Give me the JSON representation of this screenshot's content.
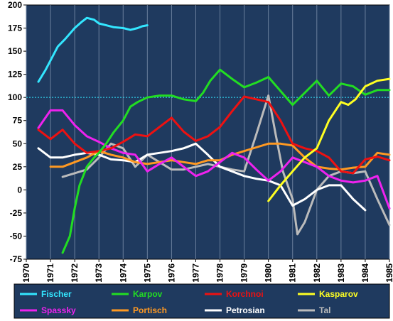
{
  "chart_data": {
    "type": "line",
    "xlim": [
      1970,
      1985
    ],
    "ylim": [
      -75,
      200
    ],
    "x_ticks": [
      "1970",
      "1971",
      "1972",
      "1973",
      "1974",
      "1975",
      "1976",
      "1977",
      "1978",
      "1979",
      "1980",
      "1981",
      "1982",
      "1983",
      "1984",
      "1985"
    ],
    "y_ticks": [
      "200",
      "175",
      "150",
      "125",
      "100",
      "75",
      "50",
      "25",
      "0",
      "-25",
      "-50",
      "-75"
    ],
    "reference_line": 100,
    "grid": "vertical",
    "background": "#1F3A5F",
    "legend_position": "bottom",
    "series": [
      {
        "name": "Fischer",
        "color": "#33E6FF",
        "x": [
          1970.5,
          1970.8,
          1971.0,
          1971.3,
          1971.6,
          1972.0,
          1972.3,
          1972.5,
          1972.8,
          1973.0,
          1973.3,
          1973.6,
          1974.0,
          1974.3,
          1974.6,
          1974.8,
          1975.0
        ],
        "y": [
          117,
          130,
          140,
          155,
          163,
          175,
          182,
          186,
          184,
          180,
          178,
          176,
          175,
          173,
          175,
          177,
          178
        ]
      },
      {
        "name": "Karpov",
        "color": "#22DD22",
        "x": [
          1971.5,
          1971.8,
          1972.0,
          1972.2,
          1972.5,
          1972.8,
          1973.0,
          1973.3,
          1973.6,
          1974.0,
          1974.3,
          1974.6,
          1975.0,
          1975.5,
          1976.0,
          1976.5,
          1977.0,
          1977.3,
          1977.6,
          1978.0,
          1978.5,
          1979.0,
          1979.5,
          1980.0,
          1980.5,
          1981.0,
          1981.5,
          1982.0,
          1982.5,
          1983.0,
          1983.5,
          1984.0,
          1984.5,
          1985.0
        ],
        "y": [
          -68,
          -50,
          -20,
          5,
          25,
          35,
          40,
          50,
          62,
          75,
          90,
          95,
          100,
          102,
          102,
          98,
          96,
          105,
          118,
          130,
          120,
          111,
          116,
          122,
          107,
          92,
          105,
          118,
          102,
          115,
          112,
          103,
          108,
          108
        ]
      },
      {
        "name": "Korchnoi",
        "color": "#EE1111",
        "x": [
          1970.5,
          1971.0,
          1971.5,
          1972.0,
          1972.5,
          1973.0,
          1973.5,
          1974.0,
          1974.5,
          1975.0,
          1975.5,
          1976.0,
          1976.5,
          1977.0,
          1977.5,
          1978.0,
          1978.5,
          1979.0,
          1979.5,
          1980.0,
          1980.5,
          1981.0,
          1981.5,
          1982.0,
          1982.5,
          1983.0,
          1983.5,
          1984.0,
          1984.5,
          1985.0
        ],
        "y": [
          65,
          55,
          65,
          50,
          40,
          42,
          45,
          52,
          60,
          58,
          68,
          78,
          63,
          53,
          58,
          68,
          85,
          101,
          98,
          95,
          75,
          50,
          45,
          42,
          35,
          20,
          18,
          33,
          36,
          32
        ]
      },
      {
        "name": "Kasparov",
        "color": "#FFFF22",
        "x": [
          1980.0,
          1980.5,
          1981.0,
          1981.5,
          1982.0,
          1982.5,
          1983.0,
          1983.3,
          1983.6,
          1984.0,
          1984.5,
          1985.0
        ],
        "y": [
          -12,
          5,
          20,
          35,
          45,
          75,
          95,
          92,
          98,
          112,
          118,
          120
        ]
      },
      {
        "name": "Spassky",
        "color": "#EE22EE",
        "x": [
          1970.5,
          1971.0,
          1971.5,
          1972.0,
          1972.5,
          1973.0,
          1973.5,
          1974.0,
          1974.5,
          1975.0,
          1975.5,
          1976.0,
          1976.5,
          1977.0,
          1977.5,
          1978.0,
          1978.5,
          1979.0,
          1979.5,
          1980.0,
          1980.5,
          1981.0,
          1981.5,
          1982.0,
          1982.5,
          1983.0,
          1983.5,
          1984.0,
          1984.5,
          1985.0
        ],
        "y": [
          67,
          86,
          86,
          70,
          58,
          52,
          45,
          40,
          38,
          20,
          28,
          35,
          25,
          15,
          20,
          30,
          40,
          35,
          22,
          10,
          20,
          35,
          30,
          25,
          15,
          10,
          8,
          10,
          15,
          -20
        ]
      },
      {
        "name": "Portisch",
        "color": "#FF9922",
        "x": [
          1971.0,
          1971.5,
          1972.0,
          1972.5,
          1973.0,
          1973.5,
          1974.0,
          1974.5,
          1975.0,
          1975.5,
          1976.0,
          1976.5,
          1977.0,
          1977.5,
          1978.0,
          1978.5,
          1979.0,
          1979.5,
          1980.0,
          1980.5,
          1981.0,
          1981.5,
          1982.0,
          1982.5,
          1983.0,
          1983.5,
          1984.0,
          1984.5,
          1985.0
        ],
        "y": [
          25,
          25,
          30,
          35,
          42,
          38,
          35,
          30,
          28,
          30,
          32,
          30,
          28,
          32,
          32,
          38,
          42,
          46,
          50,
          50,
          48,
          35,
          25,
          23,
          22,
          24,
          25,
          40,
          38
        ]
      },
      {
        "name": "Petrosian",
        "color": "#FFFFFF",
        "x": [
          1970.5,
          1971.0,
          1971.5,
          1972.0,
          1972.5,
          1973.0,
          1973.5,
          1974.0,
          1974.5,
          1975.0,
          1975.5,
          1976.0,
          1976.5,
          1977.0,
          1977.5,
          1978.0,
          1978.5,
          1979.0,
          1979.5,
          1980.0,
          1980.5,
          1981.0,
          1981.5,
          1982.0,
          1982.5,
          1983.0,
          1983.5,
          1984.0
        ],
        "y": [
          45,
          35,
          35,
          38,
          40,
          38,
          33,
          32,
          30,
          38,
          40,
          42,
          45,
          50,
          38,
          25,
          20,
          15,
          12,
          10,
          5,
          -17,
          -10,
          0,
          5,
          5,
          -10,
          -22
        ]
      },
      {
        "name": "Tal",
        "color": "#BBBBBB",
        "x": [
          1971.5,
          1972.0,
          1972.5,
          1973.0,
          1973.5,
          1974.0,
          1974.5,
          1975.0,
          1975.5,
          1976.0,
          1976.5,
          1977.0,
          1977.5,
          1978.0,
          1978.5,
          1979.0,
          1979.5,
          1980.0,
          1980.3,
          1980.6,
          1981.0,
          1981.2,
          1981.5,
          1982.0,
          1982.5,
          1983.0,
          1983.5,
          1984.0,
          1984.5,
          1985.0
        ],
        "y": [
          14,
          18,
          22,
          35,
          50,
          45,
          25,
          38,
          30,
          22,
          22,
          25,
          28,
          25,
          22,
          20,
          60,
          102,
          60,
          20,
          -10,
          -48,
          -35,
          0,
          15,
          20,
          18,
          20,
          -10,
          -38
        ]
      }
    ]
  }
}
